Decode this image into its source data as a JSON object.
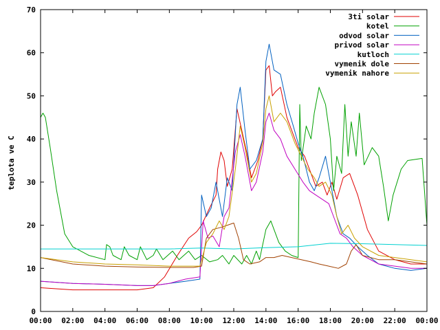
{
  "chart_data": {
    "type": "line",
    "title": "",
    "xlabel": "",
    "ylabel": "teplota ve C",
    "xlim": [
      0,
      24
    ],
    "ylim": [
      0,
      70
    ],
    "grid": false,
    "legend_position": "top-right",
    "x_ticks": [
      {
        "value": 0,
        "label": "00:00"
      },
      {
        "value": 2,
        "label": "02:00"
      },
      {
        "value": 4,
        "label": "04:00"
      },
      {
        "value": 6,
        "label": "06:00"
      },
      {
        "value": 8,
        "label": "08:00"
      },
      {
        "value": 10,
        "label": "10:00"
      },
      {
        "value": 12,
        "label": "12:00"
      },
      {
        "value": 14,
        "label": "14:00"
      },
      {
        "value": 16,
        "label": "16:00"
      },
      {
        "value": 18,
        "label": "18:00"
      },
      {
        "value": 20,
        "label": "20:00"
      },
      {
        "value": 22,
        "label": "22:00"
      },
      {
        "value": 24,
        "label": "00:00"
      }
    ],
    "y_ticks": [
      {
        "value": 0,
        "label": "0"
      },
      {
        "value": 10,
        "label": "10"
      },
      {
        "value": 20,
        "label": "20"
      },
      {
        "value": 30,
        "label": "30"
      },
      {
        "value": 40,
        "label": "40"
      },
      {
        "value": 50,
        "label": "50"
      },
      {
        "value": 60,
        "label": "60"
      },
      {
        "value": 70,
        "label": "70"
      }
    ],
    "series": [
      {
        "name": "3ti solar",
        "color": "#e00000",
        "points": [
          [
            0,
            5.5
          ],
          [
            2,
            5
          ],
          [
            4,
            5
          ],
          [
            6,
            5
          ],
          [
            7,
            5.5
          ],
          [
            7.7,
            8
          ],
          [
            8.5,
            13
          ],
          [
            9.2,
            17
          ],
          [
            9.7,
            18.5
          ],
          [
            10,
            20
          ],
          [
            10.5,
            24
          ],
          [
            10.9,
            27
          ],
          [
            11,
            33
          ],
          [
            11.2,
            37
          ],
          [
            11.4,
            35
          ],
          [
            11.6,
            29
          ],
          [
            11.9,
            33
          ],
          [
            12.2,
            47
          ],
          [
            12.5,
            42
          ],
          [
            12.8,
            37
          ],
          [
            13.1,
            31
          ],
          [
            13.5,
            35
          ],
          [
            13.8,
            40
          ],
          [
            14,
            56
          ],
          [
            14.2,
            57
          ],
          [
            14.4,
            50
          ],
          [
            14.6,
            51
          ],
          [
            14.9,
            52
          ],
          [
            15.3,
            45
          ],
          [
            15.7,
            41
          ],
          [
            16,
            38
          ],
          [
            16.4,
            36
          ],
          [
            16.8,
            32
          ],
          [
            17.1,
            29
          ],
          [
            17.5,
            30
          ],
          [
            17.8,
            27
          ],
          [
            18.1,
            30
          ],
          [
            18.4,
            26
          ],
          [
            18.8,
            31
          ],
          [
            19.2,
            32
          ],
          [
            19.7,
            27
          ],
          [
            20.3,
            19
          ],
          [
            21,
            14
          ],
          [
            22,
            12
          ],
          [
            23,
            11
          ],
          [
            24,
            11
          ]
        ]
      },
      {
        "name": "kotel",
        "color": "#00a000",
        "points": [
          [
            0,
            45
          ],
          [
            0.15,
            46
          ],
          [
            0.3,
            45
          ],
          [
            0.6,
            38
          ],
          [
            1,
            28
          ],
          [
            1.5,
            18
          ],
          [
            2,
            15
          ],
          [
            3,
            13
          ],
          [
            4,
            12
          ],
          [
            4.1,
            15.5
          ],
          [
            4.3,
            15
          ],
          [
            4.5,
            13
          ],
          [
            5,
            12
          ],
          [
            5.2,
            15
          ],
          [
            5.5,
            13
          ],
          [
            6,
            12
          ],
          [
            6.2,
            15
          ],
          [
            6.6,
            12
          ],
          [
            7,
            13
          ],
          [
            7.2,
            14.5
          ],
          [
            7.6,
            12
          ],
          [
            8.2,
            14
          ],
          [
            8.6,
            12
          ],
          [
            9.2,
            14
          ],
          [
            9.6,
            12
          ],
          [
            10,
            13
          ],
          [
            10.5,
            11.5
          ],
          [
            11,
            12
          ],
          [
            11.3,
            13
          ],
          [
            11.7,
            11
          ],
          [
            12,
            13
          ],
          [
            12.5,
            11
          ],
          [
            12.8,
            13
          ],
          [
            13.1,
            11
          ],
          [
            13.4,
            14
          ],
          [
            13.6,
            12
          ],
          [
            14,
            19
          ],
          [
            14.3,
            21
          ],
          [
            14.8,
            16
          ],
          [
            15.2,
            14
          ],
          [
            15.6,
            13
          ],
          [
            16,
            12.5
          ],
          [
            16.1,
            48
          ],
          [
            16.2,
            35
          ],
          [
            16.5,
            43
          ],
          [
            16.8,
            40
          ],
          [
            17,
            46
          ],
          [
            17.3,
            52
          ],
          [
            17.7,
            48
          ],
          [
            18,
            40
          ],
          [
            18.2,
            28
          ],
          [
            18.4,
            36
          ],
          [
            18.7,
            32
          ],
          [
            18.9,
            48
          ],
          [
            19.1,
            36
          ],
          [
            19.3,
            44
          ],
          [
            19.6,
            36
          ],
          [
            19.8,
            46
          ],
          [
            20.1,
            34
          ],
          [
            20.6,
            38
          ],
          [
            21,
            36
          ],
          [
            21.3,
            29
          ],
          [
            21.6,
            21
          ],
          [
            21.9,
            27
          ],
          [
            22.4,
            33
          ],
          [
            22.8,
            35
          ],
          [
            23.7,
            35.5
          ],
          [
            24,
            20
          ]
        ]
      },
      {
        "name": "odvod solar",
        "color": "#0060c0",
        "points": [
          [
            0,
            7
          ],
          [
            2,
            6.5
          ],
          [
            4,
            6.3
          ],
          [
            6,
            6
          ],
          [
            7,
            6
          ],
          [
            8,
            6.5
          ],
          [
            9,
            7
          ],
          [
            9.9,
            7.5
          ],
          [
            10,
            27
          ],
          [
            10.3,
            22
          ],
          [
            10.6,
            24
          ],
          [
            10.9,
            30
          ],
          [
            11.3,
            22
          ],
          [
            11.6,
            31
          ],
          [
            11.9,
            28
          ],
          [
            12.2,
            48
          ],
          [
            12.4,
            52
          ],
          [
            12.7,
            42
          ],
          [
            13,
            33
          ],
          [
            13.4,
            35
          ],
          [
            13.8,
            40
          ],
          [
            14,
            58
          ],
          [
            14.2,
            62
          ],
          [
            14.5,
            56
          ],
          [
            14.9,
            55
          ],
          [
            15.3,
            48
          ],
          [
            15.7,
            43
          ],
          [
            16,
            39
          ],
          [
            16.3,
            36
          ],
          [
            16.7,
            30
          ],
          [
            17,
            28
          ],
          [
            17.3,
            31
          ],
          [
            17.7,
            36
          ],
          [
            18,
            30
          ],
          [
            18.4,
            22
          ],
          [
            18.8,
            18
          ],
          [
            19.2,
            17
          ],
          [
            19.7,
            15
          ],
          [
            20.3,
            13
          ],
          [
            21,
            11
          ],
          [
            22,
            10
          ],
          [
            23,
            9.5
          ],
          [
            24,
            10
          ]
        ]
      },
      {
        "name": "privod solar",
        "color": "#c000c0",
        "points": [
          [
            0,
            7
          ],
          [
            2,
            6.5
          ],
          [
            4,
            6.3
          ],
          [
            6,
            6
          ],
          [
            7,
            6
          ],
          [
            8,
            6.5
          ],
          [
            9,
            7.5
          ],
          [
            9.9,
            8
          ],
          [
            10.1,
            21
          ],
          [
            10.4,
            17
          ],
          [
            10.7,
            17.5
          ],
          [
            11.1,
            15
          ],
          [
            11.4,
            22
          ],
          [
            11.7,
            24
          ],
          [
            12.1,
            37
          ],
          [
            12.4,
            41
          ],
          [
            12.7,
            36
          ],
          [
            13.1,
            28
          ],
          [
            13.4,
            30
          ],
          [
            13.8,
            37
          ],
          [
            14,
            44
          ],
          [
            14.2,
            46
          ],
          [
            14.5,
            42
          ],
          [
            14.9,
            40
          ],
          [
            15.3,
            36
          ],
          [
            15.8,
            33
          ],
          [
            16.3,
            30
          ],
          [
            16.7,
            28
          ],
          [
            17.1,
            27
          ],
          [
            17.5,
            26
          ],
          [
            17.9,
            25
          ],
          [
            18.2,
            22
          ],
          [
            18.6,
            18
          ],
          [
            19,
            17
          ],
          [
            19.4,
            15
          ],
          [
            20,
            13
          ],
          [
            21,
            11
          ],
          [
            22,
            10.5
          ],
          [
            23,
            10
          ],
          [
            24,
            10
          ]
        ]
      },
      {
        "name": "kutloch",
        "color": "#00d0d0",
        "points": [
          [
            0,
            14.5
          ],
          [
            4,
            14.5
          ],
          [
            8,
            14.5
          ],
          [
            10,
            14.7
          ],
          [
            12,
            14.5
          ],
          [
            14,
            14.8
          ],
          [
            16,
            15
          ],
          [
            18,
            15.8
          ],
          [
            20,
            15.7
          ],
          [
            22,
            15.5
          ],
          [
            24,
            15.3
          ]
        ]
      },
      {
        "name": "vymenik dole",
        "color": "#a04000",
        "points": [
          [
            0,
            12.5
          ],
          [
            2,
            11
          ],
          [
            4,
            10.5
          ],
          [
            6,
            10.3
          ],
          [
            8,
            10.2
          ],
          [
            9.5,
            10.2
          ],
          [
            10,
            10.5
          ],
          [
            10.3,
            17
          ],
          [
            10.7,
            19
          ],
          [
            11.2,
            19.5
          ],
          [
            11.6,
            20
          ],
          [
            12,
            20.5
          ],
          [
            12.3,
            17
          ],
          [
            12.6,
            12
          ],
          [
            13,
            11
          ],
          [
            13.6,
            11.5
          ],
          [
            14,
            12.5
          ],
          [
            14.5,
            12.5
          ],
          [
            15,
            13
          ],
          [
            15.6,
            12.5
          ],
          [
            16.2,
            12
          ],
          [
            16.8,
            11.5
          ],
          [
            17.3,
            11
          ],
          [
            17.9,
            10.5
          ],
          [
            18.5,
            10
          ],
          [
            19,
            11
          ],
          [
            19.3,
            14
          ],
          [
            19.6,
            15.5
          ],
          [
            20,
            13
          ],
          [
            21,
            12
          ],
          [
            22,
            12
          ],
          [
            23,
            11.5
          ],
          [
            24,
            11
          ]
        ]
      },
      {
        "name": "vymenik nahore",
        "color": "#c8a000",
        "points": [
          [
            0,
            12.5
          ],
          [
            2,
            11.5
          ],
          [
            4,
            11
          ],
          [
            6,
            10.8
          ],
          [
            8,
            10.5
          ],
          [
            9.9,
            10.5
          ],
          [
            10.3,
            16
          ],
          [
            10.7,
            18
          ],
          [
            11.1,
            21
          ],
          [
            11.4,
            19
          ],
          [
            11.7,
            22
          ],
          [
            12.1,
            33
          ],
          [
            12.4,
            43
          ],
          [
            12.7,
            38
          ],
          [
            13.1,
            30
          ],
          [
            13.4,
            32
          ],
          [
            13.8,
            39
          ],
          [
            14,
            47
          ],
          [
            14.2,
            50
          ],
          [
            14.5,
            44
          ],
          [
            14.9,
            46
          ],
          [
            15.3,
            44
          ],
          [
            15.8,
            39
          ],
          [
            16.2,
            36
          ],
          [
            16.6,
            33
          ],
          [
            17,
            31
          ],
          [
            17.3,
            29
          ],
          [
            17.7,
            30
          ],
          [
            18.1,
            27
          ],
          [
            18.4,
            22
          ],
          [
            18.7,
            18
          ],
          [
            19.1,
            20
          ],
          [
            19.5,
            17
          ],
          [
            20,
            15
          ],
          [
            21,
            13
          ],
          [
            22,
            12.5
          ],
          [
            23,
            12
          ],
          [
            24,
            11.5
          ]
        ]
      }
    ]
  }
}
